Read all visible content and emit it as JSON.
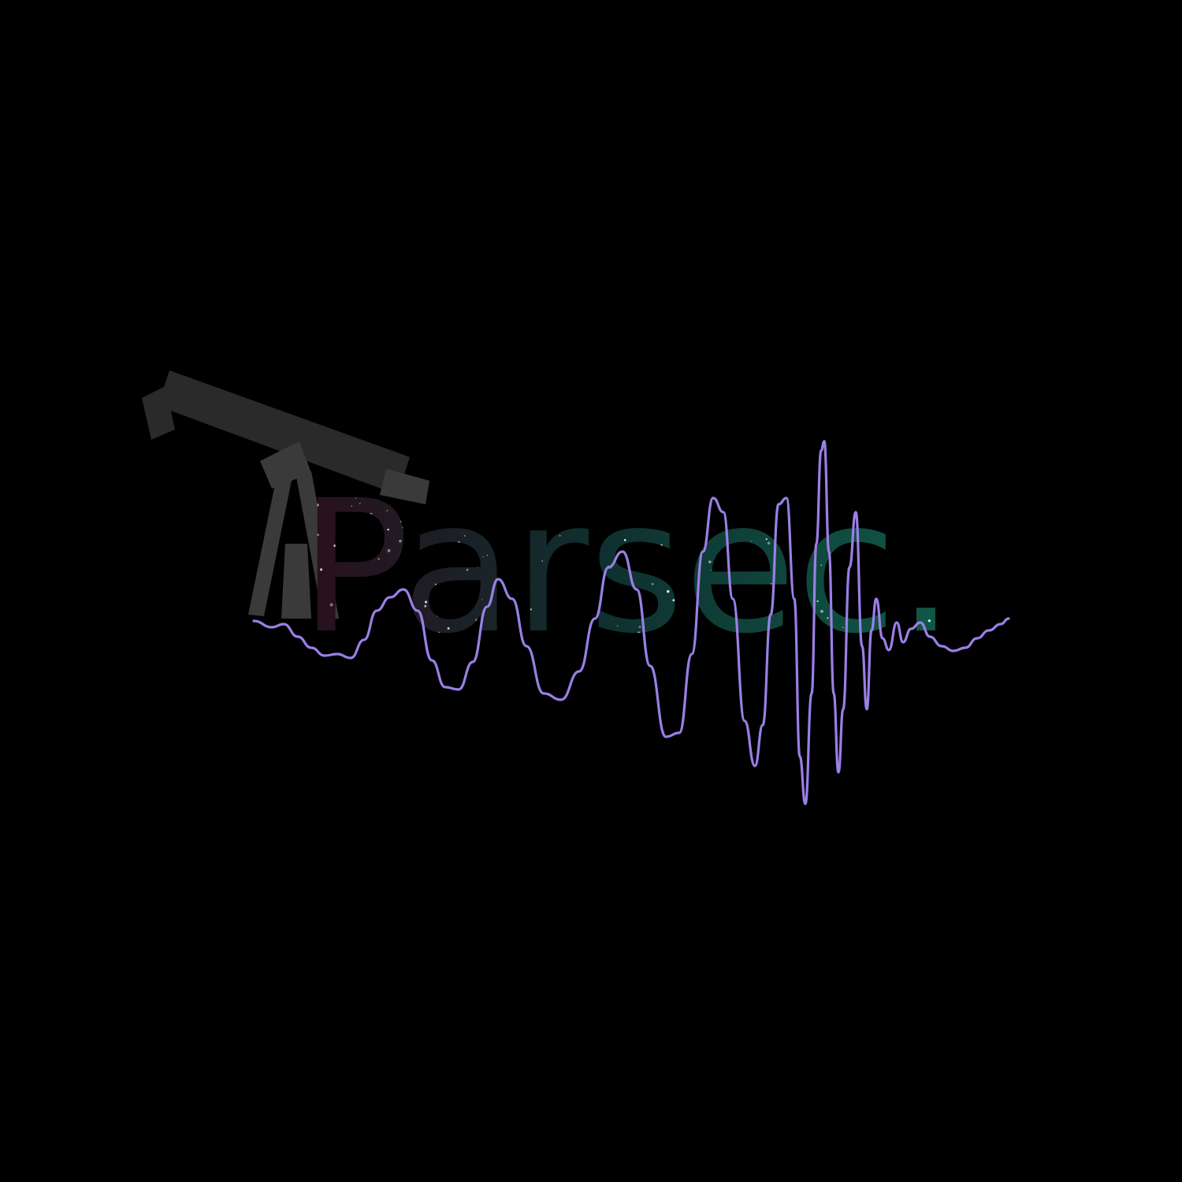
{
  "logo": {
    "wordmark": "Parsec.",
    "icon": "telescope-icon",
    "waveform": "signal-waveform-icon"
  },
  "colors": {
    "background": "#000000",
    "telescope": "#3a3a3a",
    "telescope_dark": "#2a2a2a",
    "text_gradient_start": "#2a0f1c",
    "text_gradient_mid": "#0f2f2f",
    "text_gradient_end": "#0f5a48",
    "waveform": "#9a7fe6",
    "stars": "#ffffff"
  }
}
